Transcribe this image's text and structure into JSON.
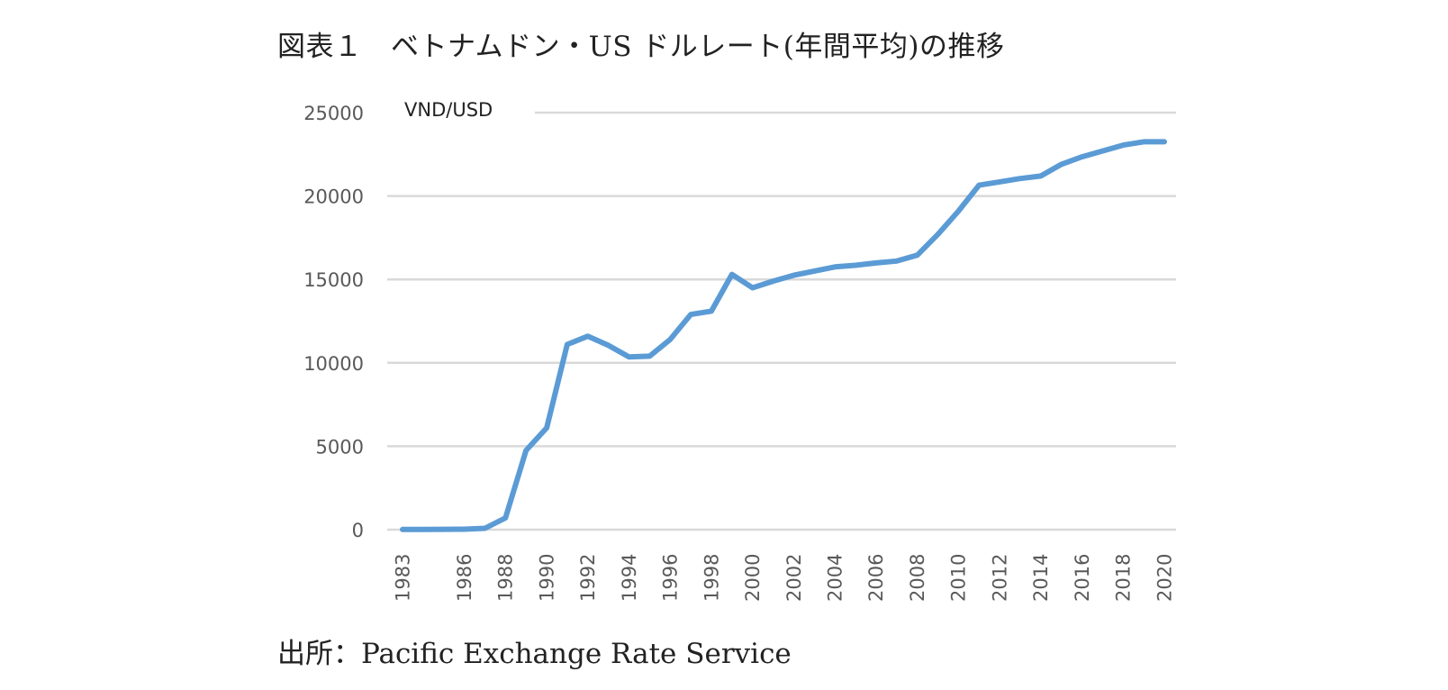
{
  "title": "図表１　ベトナムドン・US ドルレート(年間平均)の推移",
  "source": "出所：Pacific Exchange Rate Service",
  "chart_data": {
    "type": "line",
    "unit_label": "VND/USD",
    "ylim": [
      0,
      25000
    ],
    "yticks": [
      0,
      5000,
      10000,
      15000,
      20000,
      25000
    ],
    "grid": true,
    "line_color": "#5B9BD5",
    "x_tick_labels": [
      "1983",
      "1986",
      "1988",
      "1990",
      "1992",
      "1994",
      "1996",
      "1998",
      "2000",
      "2002",
      "2004",
      "2006",
      "2008",
      "2010",
      "2012",
      "2014",
      "2016",
      "2018",
      "2020"
    ],
    "x": [
      1983,
      1984,
      1985,
      1986,
      1987,
      1988,
      1989,
      1990,
      1991,
      1992,
      1993,
      1994,
      1995,
      1996,
      1997,
      1998,
      1999,
      2000,
      2001,
      2002,
      2003,
      2004,
      2005,
      2006,
      2007,
      2008,
      2009,
      2010,
      2011,
      2012,
      2013,
      2014,
      2015,
      2016,
      2017,
      2018,
      2019,
      2020
    ],
    "values": [
      10,
      15,
      20,
      25,
      80,
      700,
      4750,
      6100,
      11100,
      11600,
      11050,
      10350,
      10400,
      11400,
      12900,
      13100,
      15300,
      14500,
      14900,
      15250,
      15500,
      15750,
      15850,
      15990,
      16100,
      16450,
      17700,
      19100,
      20650,
      20850,
      21050,
      21200,
      21900,
      22350,
      22700,
      23050,
      23250,
      23250
    ]
  }
}
